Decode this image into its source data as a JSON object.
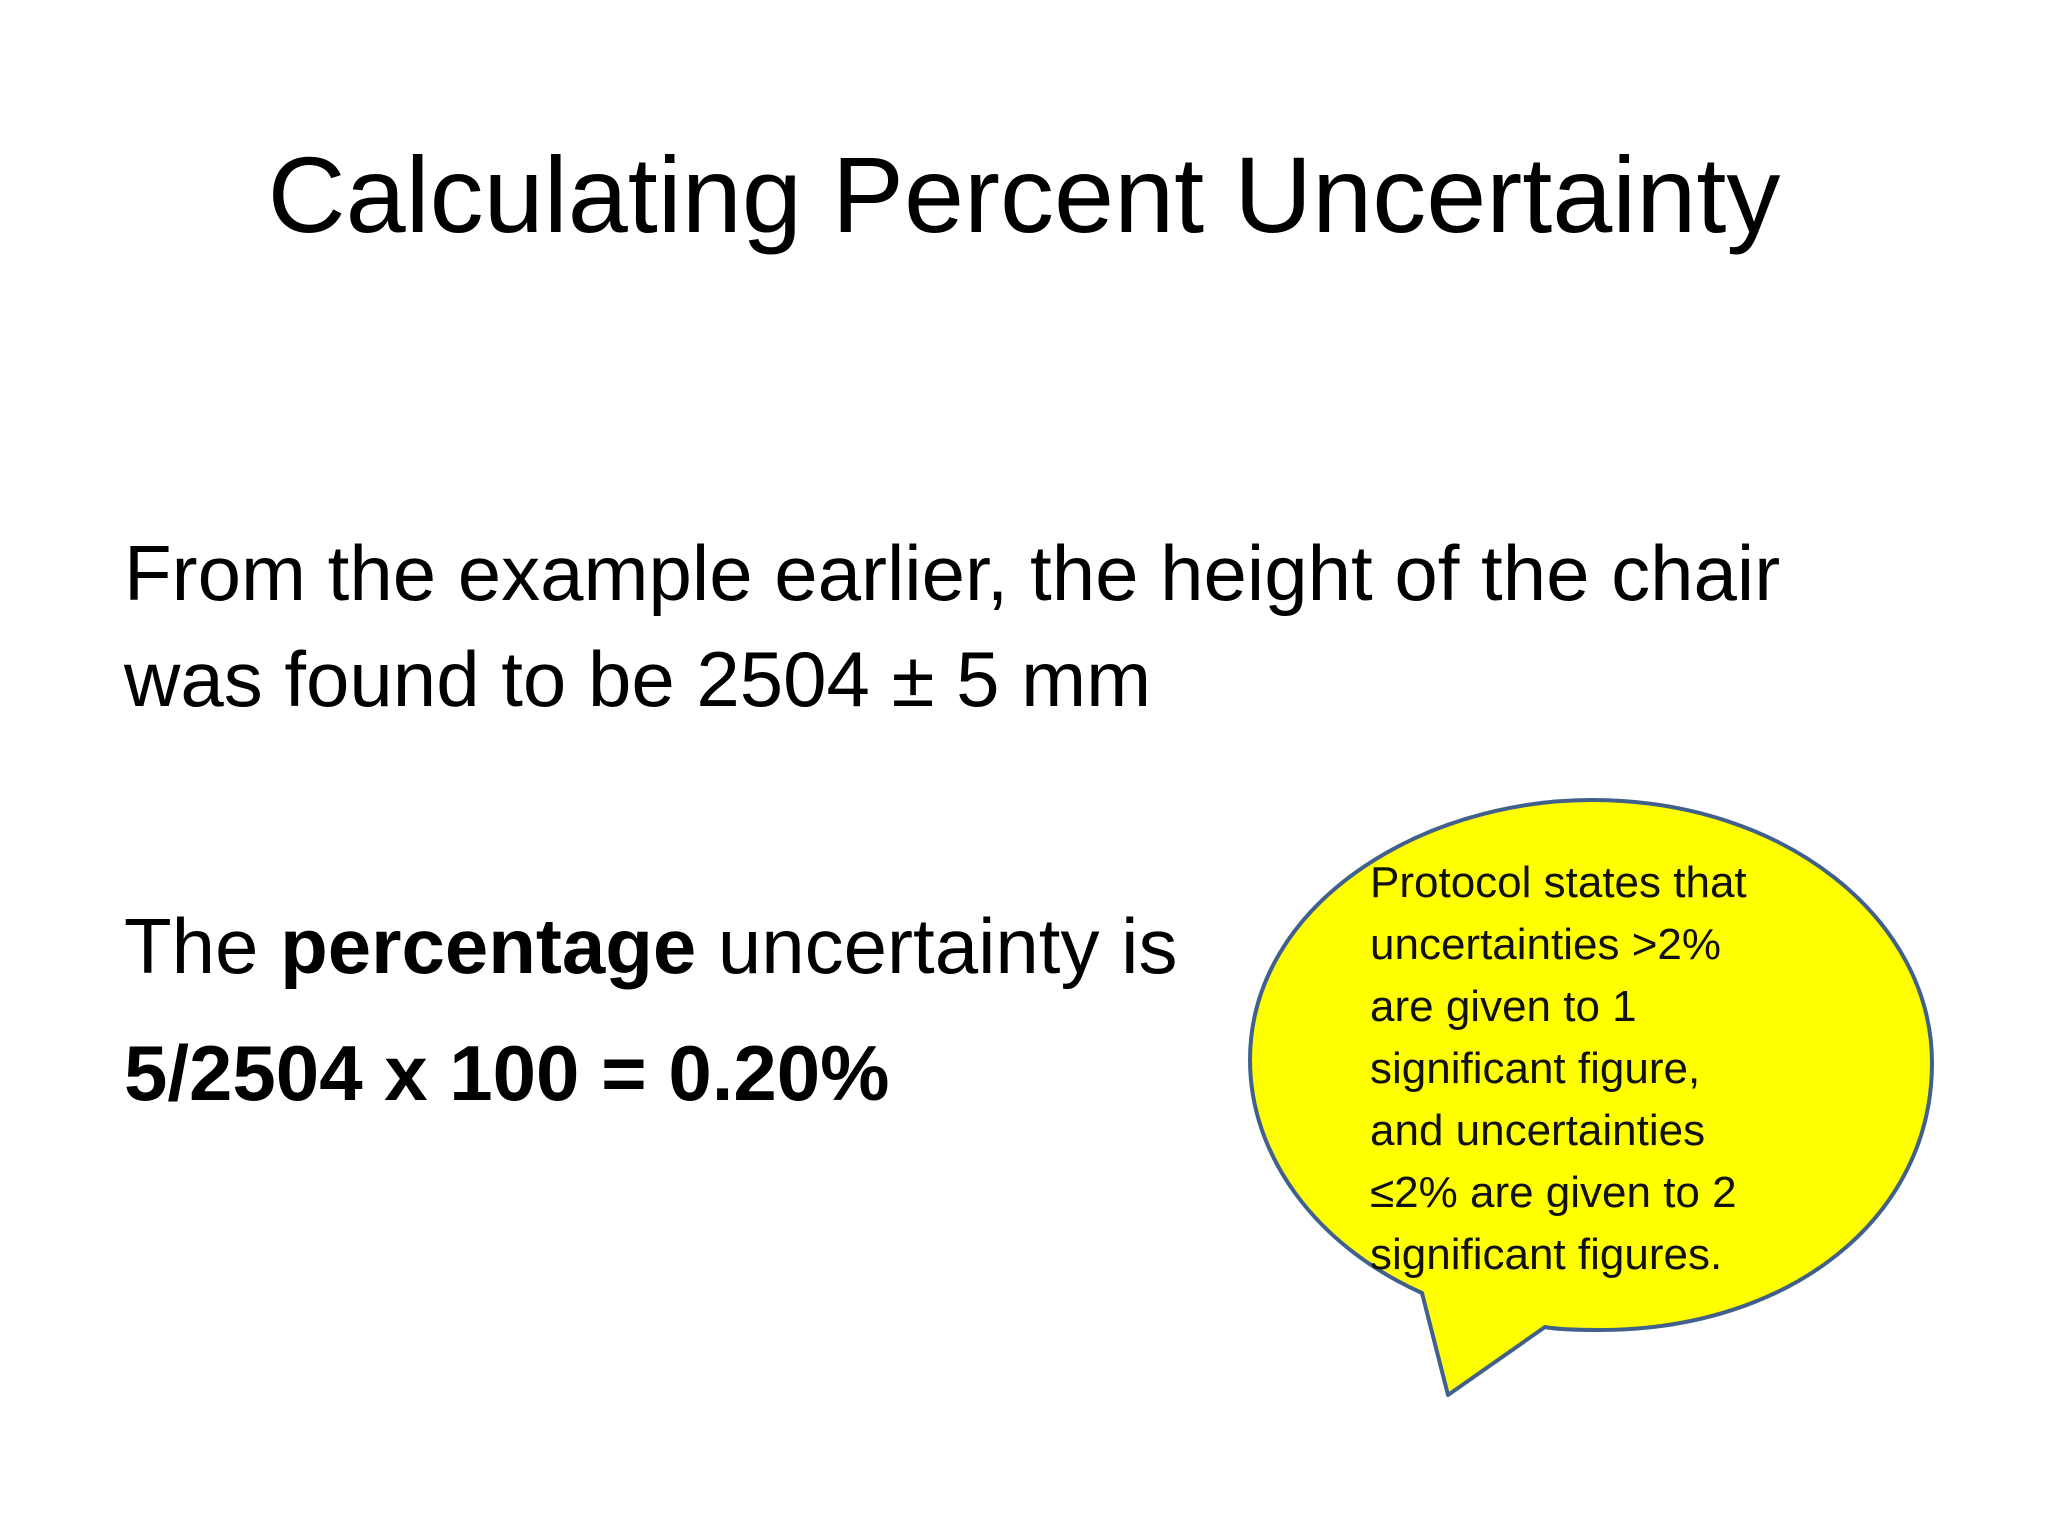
{
  "slide": {
    "title": "Calculating Percent Uncertainty",
    "paragraph1": {
      "line1": "From the example earlier, the height of the chair",
      "line2": "was found to be 2504 ± 5 mm"
    },
    "paragraph2": {
      "prefix": "The ",
      "emphasis": "percentage",
      "suffix": " uncertainty is"
    },
    "calculation": "5/2504 x 100 =  0.20%"
  },
  "callout": {
    "fill_color": "#ffff00",
    "border_color": "#41618c",
    "lines": [
      "Protocol states that",
      "uncertainties >2%",
      "are given to 1",
      "significant figure,",
      "and uncertainties",
      "≤2% are given to 2",
      "significant figures."
    ]
  }
}
